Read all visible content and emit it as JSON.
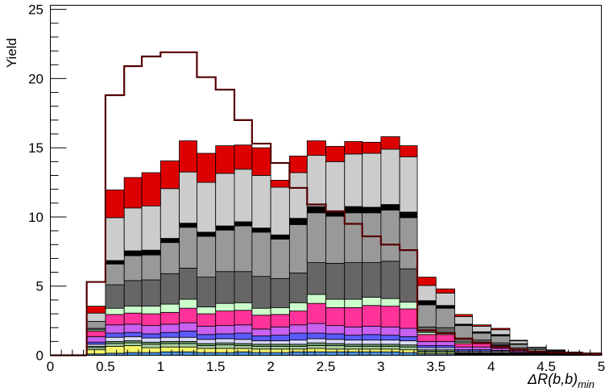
{
  "chart_data": {
    "type": "bar",
    "subtype": "stacked-histogram-with-overlay",
    "xlabel_main": "ΔR(b,b)",
    "xlabel_sub": "min",
    "ylabel": "Yield",
    "xlim": [
      0,
      5
    ],
    "ylim": [
      0,
      25.3
    ],
    "x_ticks": [
      "0",
      "0.5",
      "1",
      "1.5",
      "2",
      "2.5",
      "3",
      "3.5",
      "4",
      "4.5",
      "5"
    ],
    "y_ticks": [
      "0",
      "5",
      "10",
      "15",
      "20",
      "25"
    ],
    "bin_edges": [
      0.33,
      0.5,
      0.67,
      0.83,
      1.0,
      1.17,
      1.33,
      1.5,
      1.67,
      1.83,
      2.0,
      2.17,
      2.33,
      2.5,
      2.67,
      2.83,
      3.0,
      3.17,
      3.33,
      3.5,
      3.67,
      3.83,
      4.0,
      4.17,
      4.33,
      4.5,
      4.67,
      4.83,
      5.0
    ],
    "series": [
      {
        "color": "#4a8fd8",
        "values": [
          0.1,
          0.15,
          0.2,
          0.2,
          0.25,
          0.25,
          0.2,
          0.2,
          0.25,
          0.2,
          0.2,
          0.25,
          0.25,
          0.25,
          0.25,
          0.25,
          0.25,
          0.2,
          0.1,
          0.1,
          0.05,
          0.05,
          0.05,
          0.03,
          0.02,
          0.02,
          0.01,
          0.01
        ]
      },
      {
        "color": "#f5f56a",
        "values": [
          0.3,
          0.5,
          0.5,
          0.35,
          0.35,
          0.35,
          0.3,
          0.3,
          0.25,
          0.25,
          0.25,
          0.2,
          0.25,
          0.2,
          0.2,
          0.2,
          0.2,
          0.2,
          0.1,
          0.1,
          0.05,
          0.05,
          0.05,
          0.03,
          0.02,
          0.02,
          0.01,
          0.01
        ]
      },
      {
        "color": "#a8cfa0",
        "values": [
          0.15,
          0.2,
          0.2,
          0.25,
          0.25,
          0.25,
          0.2,
          0.25,
          0.2,
          0.2,
          0.2,
          0.2,
          0.2,
          0.25,
          0.2,
          0.2,
          0.2,
          0.2,
          0.1,
          0.1,
          0.05,
          0.05,
          0.05,
          0.03,
          0.02,
          0.02,
          0.01,
          0.01
        ]
      },
      {
        "color": "#6a9a6a",
        "values": [
          0.1,
          0.15,
          0.15,
          0.15,
          0.15,
          0.15,
          0.15,
          0.15,
          0.15,
          0.15,
          0.15,
          0.15,
          0.2,
          0.15,
          0.15,
          0.15,
          0.15,
          0.15,
          0.1,
          0.1,
          0.05,
          0.05,
          0.05,
          0.02,
          0.02,
          0.02,
          0.01,
          0.01
        ]
      },
      {
        "color": "#d8d8f8",
        "values": [
          0.15,
          0.3,
          0.3,
          0.3,
          0.3,
          0.3,
          0.3,
          0.3,
          0.3,
          0.25,
          0.25,
          0.3,
          0.3,
          0.3,
          0.3,
          0.3,
          0.3,
          0.3,
          0.15,
          0.15,
          0.1,
          0.1,
          0.1,
          0.05,
          0.03,
          0.02,
          0.01,
          0.01
        ]
      },
      {
        "color": "#5a5aff",
        "values": [
          0.15,
          0.3,
          0.3,
          0.3,
          0.35,
          0.45,
          0.35,
          0.35,
          0.45,
          0.35,
          0.4,
          0.5,
          0.4,
          0.4,
          0.35,
          0.4,
          0.35,
          0.3,
          0.15,
          0.15,
          0.1,
          0.1,
          0.05,
          0.05,
          0.03,
          0.02,
          0.01,
          0.01
        ]
      },
      {
        "color": "#c860f0",
        "values": [
          0.4,
          0.6,
          0.6,
          0.6,
          0.6,
          0.6,
          0.6,
          0.6,
          0.6,
          0.5,
          0.6,
          0.6,
          0.7,
          0.6,
          0.6,
          0.6,
          0.6,
          0.6,
          0.3,
          0.3,
          0.2,
          0.2,
          0.15,
          0.1,
          0.05,
          0.03,
          0.02,
          0.01
        ]
      },
      {
        "color": "#ff3399",
        "values": [
          0.4,
          0.75,
          0.8,
          0.85,
          0.85,
          1.05,
          0.9,
          1.05,
          1.05,
          1.0,
          0.9,
          1.0,
          1.45,
          1.3,
          1.4,
          1.5,
          1.5,
          1.4,
          0.5,
          0.5,
          0.25,
          0.25,
          0.2,
          0.1,
          0.05,
          0.03,
          0.02,
          0.01
        ]
      },
      {
        "color": "#ccffcc",
        "values": [
          0.1,
          0.45,
          0.5,
          0.55,
          0.6,
          0.65,
          0.5,
          0.55,
          0.55,
          0.5,
          0.5,
          0.6,
          0.65,
          0.6,
          0.6,
          0.6,
          0.55,
          0.5,
          0.15,
          0.15,
          0.1,
          0.1,
          0.05,
          0.03,
          0.02,
          0.01,
          0.01,
          0.01
        ]
      },
      {
        "color": "#666666",
        "values": [
          0.1,
          1.7,
          1.85,
          1.9,
          2.2,
          2.25,
          2.15,
          2.3,
          2.25,
          2.3,
          2.1,
          2.15,
          2.3,
          2.6,
          2.65,
          2.5,
          2.7,
          2.4,
          0.4,
          0.35,
          0.3,
          0.15,
          0.15,
          0.1,
          0.05,
          0.03,
          0.02,
          0.01
        ]
      },
      {
        "color": "#999999",
        "values": [
          0.5,
          1.5,
          1.8,
          1.8,
          2.25,
          2.95,
          2.95,
          3.0,
          3.3,
          3.2,
          2.85,
          3.5,
          3.6,
          3.4,
          3.6,
          3.6,
          3.7,
          3.7,
          1.6,
          1.4,
          0.9,
          0.5,
          0.5,
          0.25,
          0.12,
          0.08,
          0.05,
          0.03
        ]
      },
      {
        "color": "#000000",
        "values": [
          0.0,
          0.25,
          0.35,
          0.35,
          0.3,
          0.3,
          0.3,
          0.3,
          0.3,
          0.3,
          0.3,
          0.45,
          0.45,
          0.4,
          0.45,
          0.4,
          0.4,
          0.4,
          0.3,
          0.2,
          0.1,
          0.1,
          0.1,
          0.05,
          0.03,
          0.02,
          0.01,
          0.01
        ]
      },
      {
        "color": "#cccccc",
        "values": [
          0.6,
          3.1,
          3.1,
          3.2,
          3.6,
          3.7,
          3.6,
          3.8,
          3.8,
          3.8,
          3.45,
          3.3,
          3.7,
          3.55,
          3.8,
          3.9,
          4.0,
          4.0,
          1.1,
          0.9,
          0.55,
          0.4,
          0.35,
          0.2,
          0.1,
          0.05,
          0.03,
          0.02
        ]
      },
      {
        "color": "#dd0000",
        "values": [
          0.5,
          2.0,
          2.2,
          2.4,
          2.0,
          2.25,
          2.1,
          2.0,
          1.75,
          2.0,
          0.5,
          1.2,
          1.05,
          1.1,
          0.9,
          0.8,
          0.9,
          0.8,
          0.6,
          0.3,
          0.15,
          0.1,
          0.1,
          0.05,
          0.03,
          0.02,
          0.02,
          0.01
        ]
      }
    ],
    "overlay": {
      "color": "#550000",
      "values": [
        5.3,
        18.8,
        20.9,
        21.6,
        21.9,
        21.9,
        20.1,
        19.2,
        17.0,
        15.3,
        13.9,
        12.1,
        10.9,
        10.4,
        9.5,
        8.6,
        8.0,
        7.6,
        1.8,
        1.6,
        1.2,
        0.9,
        0.6,
        0.4,
        0.25,
        0.2,
        0.15,
        0.1
      ]
    }
  }
}
